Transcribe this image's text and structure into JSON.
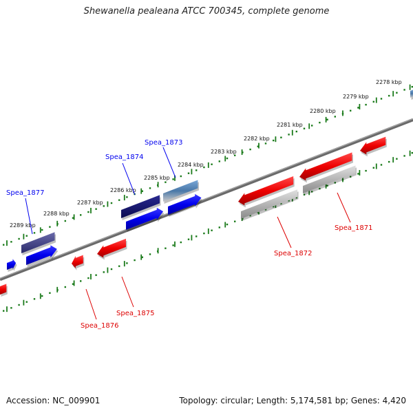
{
  "title": "Shewanella pealeana ATCC 700345, complete genome",
  "footer": {
    "accession": "Accession: NC_009901",
    "summary": "Topology: circular; Length: 5,174,581 bp; Genes: 4,420"
  },
  "scale_labels": [
    "2278 kbp",
    "2279 kbp",
    "2280 kbp",
    "2281 kbp",
    "2282 kbp",
    "2283 kbp",
    "2284 kbp",
    "2285 kbp",
    "2286 kbp",
    "2287 kbp",
    "2288 kbp",
    "2289 kbp"
  ],
  "genes": {
    "forward": [
      {
        "label": "Spea_1877",
        "color": "#0000ee"
      },
      {
        "label": "Spea_1874",
        "color": "#0000ee"
      },
      {
        "label": "Spea_1873",
        "color": "#0000ee"
      }
    ],
    "reverse": [
      {
        "label": "Spea_1876",
        "color": "#dd0000"
      },
      {
        "label": "Spea_1875",
        "color": "#dd0000"
      },
      {
        "label": "Spea_1872",
        "color": "#dd0000"
      },
      {
        "label": "Spea_1871",
        "color": "#dd0000"
      }
    ]
  },
  "colors": {
    "forward": "#0000ee",
    "reverse": "#ee0000",
    "backbone": "#777777",
    "scale": "#1a7a1a",
    "cog_navy": "#14146e",
    "cog_slate": "#4a4a8a",
    "cog_steel": "#4a78a8",
    "cog_gray": "#b8b8b8"
  }
}
